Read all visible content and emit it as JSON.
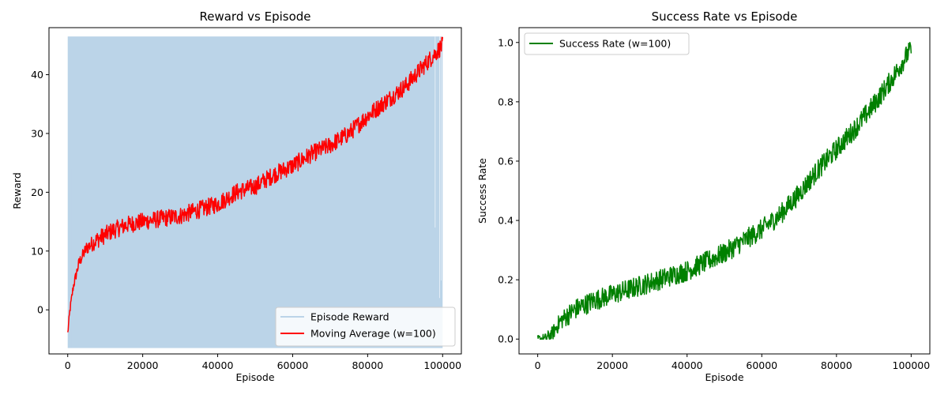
{
  "chart_data": [
    {
      "type": "line",
      "title": "Reward vs Episode",
      "xlabel": "Episode",
      "ylabel": "Reward",
      "xlim": [
        -5000,
        105000
      ],
      "ylim": [
        -7.5,
        48
      ],
      "xticks": [
        0,
        20000,
        40000,
        60000,
        80000,
        100000
      ],
      "yticks": [
        0,
        10,
        20,
        30,
        40
      ],
      "legend_position": "lower-right",
      "grid": false,
      "series": [
        {
          "name": "Episode Reward",
          "color": "#bbd4e8",
          "style": "dense-oscillation",
          "band": [
            -6.5,
            46.5
          ],
          "x_range": [
            0,
            100000
          ]
        },
        {
          "name": "Moving Average (w=100)",
          "color": "#ff0000",
          "noise": 1.5,
          "x": [
            0,
            600,
            1500,
            3000,
            5000,
            8000,
            12000,
            16000,
            20000,
            25000,
            30000,
            35000,
            40000,
            45000,
            50000,
            55000,
            60000,
            65000,
            70000,
            75000,
            80000,
            85000,
            90000,
            95000,
            100000
          ],
          "y": [
            -4,
            0,
            4,
            8,
            10.5,
            12,
            13.5,
            14.5,
            15,
            15.5,
            16,
            17,
            18,
            20,
            21,
            23,
            24.5,
            26.5,
            28,
            30,
            33,
            35.5,
            38,
            41.5,
            45
          ]
        }
      ]
    },
    {
      "type": "line",
      "title": "Success Rate vs Episode",
      "xlabel": "Episode",
      "ylabel": "Success Rate",
      "xlim": [
        -5000,
        105000
      ],
      "ylim": [
        -0.05,
        1.05
      ],
      "xticks": [
        0,
        20000,
        40000,
        60000,
        80000,
        100000
      ],
      "yticks": [
        0.0,
        0.2,
        0.4,
        0.6,
        0.8,
        1.0
      ],
      "legend_position": "upper-left",
      "grid": false,
      "series": [
        {
          "name": "Success Rate (w=100)",
          "color": "#008000",
          "noise": 0.035,
          "x": [
            0,
            2000,
            4000,
            6000,
            10000,
            15000,
            20000,
            25000,
            30000,
            35000,
            40000,
            45000,
            50000,
            55000,
            60000,
            65000,
            70000,
            75000,
            80000,
            85000,
            90000,
            95000,
            100000
          ],
          "y": [
            0,
            0,
            0.02,
            0.06,
            0.1,
            0.13,
            0.15,
            0.17,
            0.19,
            0.21,
            0.23,
            0.26,
            0.29,
            0.33,
            0.37,
            0.42,
            0.49,
            0.57,
            0.64,
            0.71,
            0.79,
            0.88,
            0.98
          ]
        }
      ]
    }
  ]
}
